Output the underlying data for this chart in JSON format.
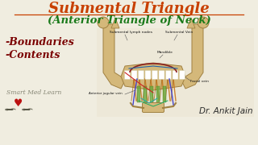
{
  "bg_color": "#f0ede0",
  "title1": "Submental Triangle",
  "title1_color": "#c84000",
  "title2": "(Anterior Triangle of Neck)",
  "title2_color": "#1a7a1a",
  "bullet1": "-Boundaries",
  "bullet2": "-Contents",
  "bullets_color": "#7a0000",
  "watermark": "Smart Med Learn",
  "doctor": "Dr. Ankit Jain",
  "doctor_color": "#2a2a2a",
  "title1_fontsize": 13,
  "title2_fontsize": 9.5,
  "bullets_fontsize": 9,
  "watermark_fontsize": 5.5,
  "doctor_fontsize": 7.5,
  "bone_color": "#d4b87a",
  "bone_edge": "#a08040",
  "muscle_color": "#c8a060",
  "label_color": "#111111",
  "label_fontsize": 3.2
}
